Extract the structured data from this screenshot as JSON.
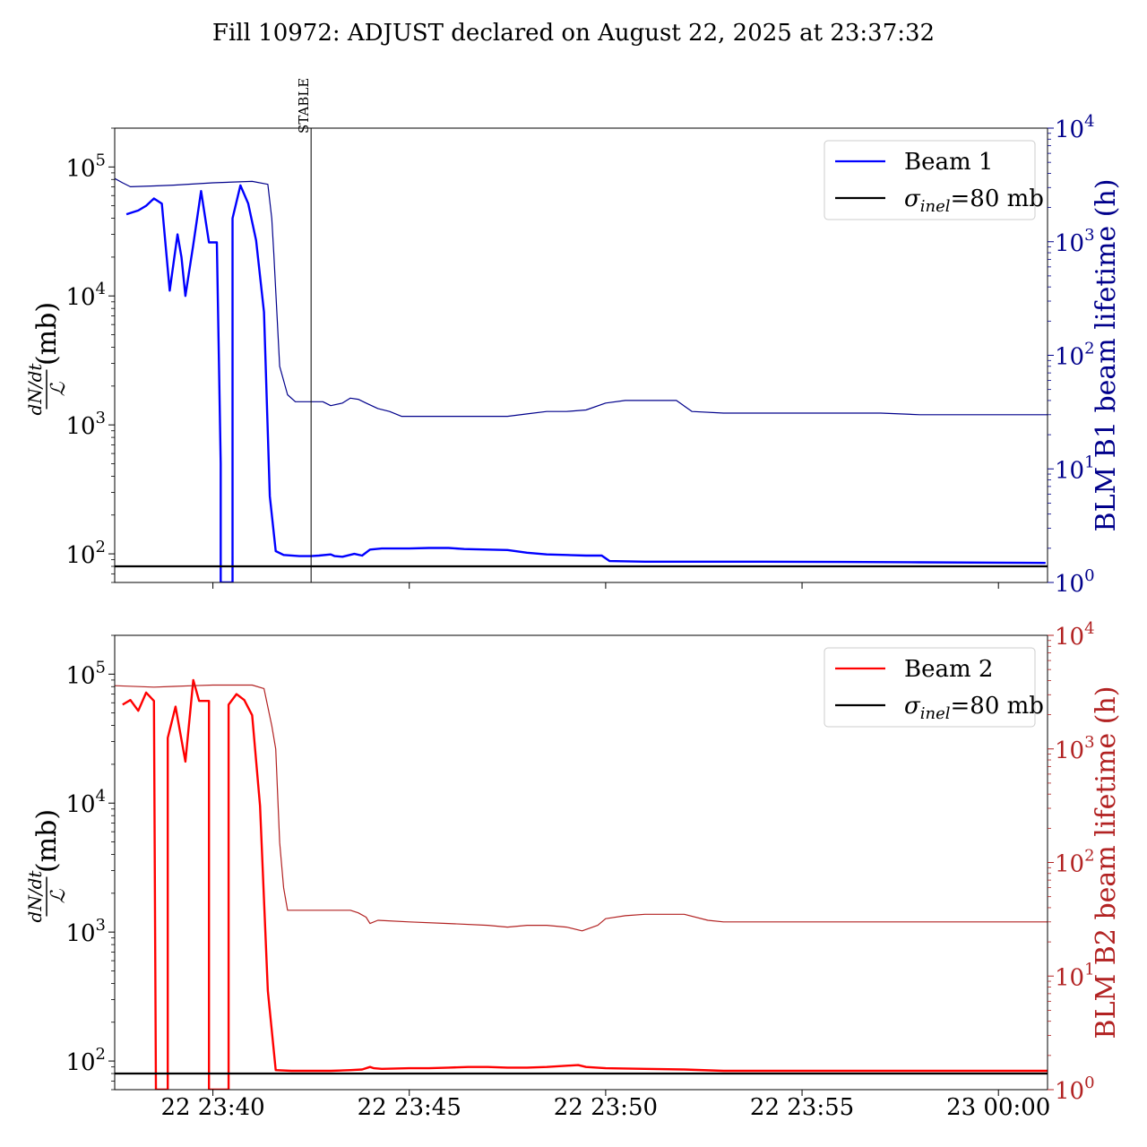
{
  "chart_data": {
    "title": "Fill 10972: ADJUST declared on August 22, 2025 at 23:37:32",
    "annotation": {
      "text": "STABLE",
      "x_minutes": 4.5
    },
    "x_ticks": [
      {
        "minutes": 2.0,
        "label": "22 23:40"
      },
      {
        "minutes": 7.0,
        "label": "22 23:45"
      },
      {
        "minutes": 12.0,
        "label": "22 23:50"
      },
      {
        "minutes": 17.0,
        "label": "22 23:55"
      },
      {
        "minutes": 22.0,
        "label": "23 00:00"
      }
    ],
    "x_range_minutes": [
      -0.5,
      23.25
    ],
    "panels": [
      {
        "type": "line",
        "yscale": "log",
        "ylabel_left": "(mb)",
        "ylabel_fraction": {
          "numerator": "dN/dt",
          "denominator": "ℒ"
        },
        "ylim_left": [
          60,
          200000
        ],
        "left_ticks": [
          {
            "base": "10",
            "exp": "2",
            "value": 100
          },
          {
            "base": "10",
            "exp": "3",
            "value": 1000
          },
          {
            "base": "10",
            "exp": "4",
            "value": 10000
          },
          {
            "base": "10",
            "exp": "5",
            "value": 100000
          }
        ],
        "ylabel_right": "BLM B1 beam lifetime (h)",
        "right_color": "#00008b",
        "ylim_right": [
          1,
          10000
        ],
        "right_ticks": [
          {
            "base": "10",
            "exp": "0",
            "value": 1
          },
          {
            "base": "10",
            "exp": "1",
            "value": 10
          },
          {
            "base": "10",
            "exp": "2",
            "value": 100
          },
          {
            "base": "10",
            "exp": "3",
            "value": 1000
          },
          {
            "base": "10",
            "exp": "4",
            "value": 10000
          }
        ],
        "series": [
          {
            "name": "Beam 1",
            "color": "#0000ff",
            "axis": "left",
            "points": [
              [
                -0.2,
                43000
              ],
              [
                0.1,
                46000
              ],
              [
                0.3,
                50000
              ],
              [
                0.5,
                57000
              ],
              [
                0.7,
                52000
              ],
              [
                0.9,
                11000
              ],
              [
                1.1,
                30000
              ],
              [
                1.2,
                20000
              ],
              [
                1.3,
                10000
              ],
              [
                1.5,
                25000
              ],
              [
                1.7,
                65000
              ],
              [
                1.9,
                26000
              ],
              [
                2.1,
                26000
              ],
              [
                2.2,
                500
              ],
              [
                2.2,
                40
              ],
              [
                2.5,
                40
              ],
              [
                2.5,
                40000
              ],
              [
                2.7,
                72000
              ],
              [
                2.9,
                52000
              ],
              [
                3.1,
                27000
              ],
              [
                3.3,
                7500
              ],
              [
                3.45,
                280
              ],
              [
                3.6,
                105
              ],
              [
                3.8,
                98
              ],
              [
                4.2,
                96
              ],
              [
                4.5,
                96
              ],
              [
                4.7,
                97
              ],
              [
                5.0,
                99
              ],
              [
                5.1,
                96
              ],
              [
                5.3,
                95
              ],
              [
                5.6,
                100
              ],
              [
                5.8,
                97
              ],
              [
                6.0,
                108
              ],
              [
                6.3,
                110
              ],
              [
                7.0,
                110
              ],
              [
                7.5,
                111
              ],
              [
                8.0,
                111
              ],
              [
                8.4,
                109
              ],
              [
                9.0,
                108
              ],
              [
                9.5,
                107
              ],
              [
                10.0,
                102
              ],
              [
                10.5,
                99
              ],
              [
                11.0,
                98
              ],
              [
                11.5,
                97
              ],
              [
                11.9,
                97
              ],
              [
                12.1,
                88
              ],
              [
                13.0,
                87
              ],
              [
                14.0,
                87
              ],
              [
                16.0,
                87
              ],
              [
                18.0,
                86.5
              ],
              [
                20.0,
                86
              ],
              [
                22.0,
                85.5
              ],
              [
                23.2,
                85
              ]
            ]
          },
          {
            "name": "",
            "color": "#00008b",
            "axis": "right",
            "points": [
              [
                -0.5,
                3600
              ],
              [
                -0.3,
                3300
              ],
              [
                -0.1,
                3050
              ],
              [
                0.5,
                3100
              ],
              [
                1.0,
                3150
              ],
              [
                2.0,
                3300
              ],
              [
                3.0,
                3400
              ],
              [
                3.4,
                3200
              ],
              [
                3.5,
                1600
              ],
              [
                3.55,
                800
              ],
              [
                3.7,
                80
              ],
              [
                3.8,
                60
              ],
              [
                3.9,
                45
              ],
              [
                4.1,
                39
              ],
              [
                4.5,
                39
              ],
              [
                4.8,
                39
              ],
              [
                5.0,
                36
              ],
              [
                5.3,
                38
              ],
              [
                5.5,
                42
              ],
              [
                5.7,
                41
              ],
              [
                5.9,
                38
              ],
              [
                6.2,
                34
              ],
              [
                6.5,
                32
              ],
              [
                6.8,
                29
              ],
              [
                7.5,
                29
              ],
              [
                8.5,
                29
              ],
              [
                9.0,
                29
              ],
              [
                9.5,
                29
              ],
              [
                10.0,
                30.5
              ],
              [
                10.5,
                32
              ],
              [
                11.0,
                32
              ],
              [
                11.5,
                33
              ],
              [
                12.0,
                38
              ],
              [
                12.5,
                40
              ],
              [
                13.0,
                40
              ],
              [
                13.8,
                40
              ],
              [
                14.2,
                32
              ],
              [
                15.0,
                31
              ],
              [
                17.0,
                31
              ],
              [
                19.0,
                31
              ],
              [
                20.0,
                30
              ],
              [
                21.0,
                30
              ],
              [
                23.25,
                30
              ]
            ]
          },
          {
            "name": "σinel=80 mb",
            "color": "#000000",
            "axis": "left",
            "points": [
              [
                -0.5,
                80
              ],
              [
                23.25,
                80
              ]
            ]
          }
        ]
      },
      {
        "type": "line",
        "yscale": "log",
        "ylabel_left": "(mb)",
        "ylabel_fraction": {
          "numerator": "dN/dt",
          "denominator": "ℒ"
        },
        "ylim_left": [
          60,
          200000
        ],
        "left_ticks": [
          {
            "base": "10",
            "exp": "2",
            "value": 100
          },
          {
            "base": "10",
            "exp": "3",
            "value": 1000
          },
          {
            "base": "10",
            "exp": "4",
            "value": 10000
          },
          {
            "base": "10",
            "exp": "5",
            "value": 100000
          }
        ],
        "ylabel_right": "BLM B2 beam lifetime (h)",
        "right_color": "#b22222",
        "ylim_right": [
          1,
          10000
        ],
        "right_ticks": [
          {
            "base": "10",
            "exp": "0",
            "value": 1
          },
          {
            "base": "10",
            "exp": "1",
            "value": 10
          },
          {
            "base": "10",
            "exp": "2",
            "value": 100
          },
          {
            "base": "10",
            "exp": "3",
            "value": 1000
          },
          {
            "base": "10",
            "exp": "4",
            "value": 10000
          }
        ],
        "series": [
          {
            "name": "Beam 2",
            "color": "#ff0000",
            "axis": "left",
            "points": [
              [
                -0.3,
                58000
              ],
              [
                -0.1,
                63000
              ],
              [
                0.1,
                52000
              ],
              [
                0.3,
                72000
              ],
              [
                0.5,
                62000
              ],
              [
                0.55,
                40
              ],
              [
                0.85,
                40
              ],
              [
                0.85,
                32000
              ],
              [
                1.05,
                56000
              ],
              [
                1.3,
                21000
              ],
              [
                1.5,
                90000
              ],
              [
                1.65,
                62000
              ],
              [
                1.9,
                62000
              ],
              [
                1.9,
                40
              ],
              [
                2.4,
                40
              ],
              [
                2.4,
                58000
              ],
              [
                2.6,
                70000
              ],
              [
                2.8,
                63000
              ],
              [
                3.0,
                48000
              ],
              [
                3.2,
                9500
              ],
              [
                3.4,
                350
              ],
              [
                3.6,
                85
              ],
              [
                4.0,
                84
              ],
              [
                4.5,
                84
              ],
              [
                5.0,
                84
              ],
              [
                5.5,
                85
              ],
              [
                5.8,
                86
              ],
              [
                6.0,
                90
              ],
              [
                6.1,
                88
              ],
              [
                6.3,
                87
              ],
              [
                7.0,
                88
              ],
              [
                7.5,
                88
              ],
              [
                8.0,
                89
              ],
              [
                8.5,
                90
              ],
              [
                9.0,
                90
              ],
              [
                9.5,
                89
              ],
              [
                10.0,
                89
              ],
              [
                10.5,
                90
              ],
              [
                11.0,
                92
              ],
              [
                11.3,
                93
              ],
              [
                11.5,
                90
              ],
              [
                12.0,
                88
              ],
              [
                13.0,
                87
              ],
              [
                14.0,
                86
              ],
              [
                15.0,
                84
              ],
              [
                16.0,
                84
              ],
              [
                18.0,
                84
              ],
              [
                20.0,
                84
              ],
              [
                23.25,
                84
              ]
            ]
          },
          {
            "name": "",
            "color": "#b22222",
            "axis": "right",
            "points": [
              [
                -0.5,
                3600
              ],
              [
                0.5,
                3500
              ],
              [
                1.0,
                3550
              ],
              [
                1.5,
                3600
              ],
              [
                2.0,
                3650
              ],
              [
                3.0,
                3650
              ],
              [
                3.3,
                3400
              ],
              [
                3.5,
                1600
              ],
              [
                3.6,
                1000
              ],
              [
                3.7,
                150
              ],
              [
                3.8,
                60
              ],
              [
                3.9,
                38
              ],
              [
                4.5,
                38
              ],
              [
                5.0,
                38
              ],
              [
                5.5,
                38
              ],
              [
                5.7,
                36
              ],
              [
                5.9,
                33
              ],
              [
                6.0,
                29
              ],
              [
                6.2,
                31
              ],
              [
                7.0,
                30
              ],
              [
                8.0,
                29
              ],
              [
                9.0,
                28
              ],
              [
                9.5,
                27
              ],
              [
                10.0,
                28
              ],
              [
                10.5,
                28
              ],
              [
                11.0,
                27
              ],
              [
                11.4,
                25
              ],
              [
                11.8,
                28
              ],
              [
                12.0,
                32
              ],
              [
                12.5,
                34
              ],
              [
                13.0,
                35
              ],
              [
                13.5,
                35
              ],
              [
                14.0,
                35
              ],
              [
                14.6,
                31
              ],
              [
                15.0,
                30
              ],
              [
                17.0,
                30
              ],
              [
                19.0,
                30
              ],
              [
                21.0,
                30
              ],
              [
                23.25,
                30
              ]
            ]
          },
          {
            "name": "σinel=80 mb",
            "color": "#000000",
            "axis": "left",
            "points": [
              [
                -0.5,
                80
              ],
              [
                23.25,
                80
              ]
            ]
          }
        ]
      }
    ],
    "legends": [
      {
        "entries": [
          "Beam 1",
          "σinel=80 mb"
        ],
        "placement": "upper-right"
      },
      {
        "entries": [
          "Beam 2",
          "σinel=80 mb"
        ],
        "placement": "upper-right"
      }
    ]
  }
}
